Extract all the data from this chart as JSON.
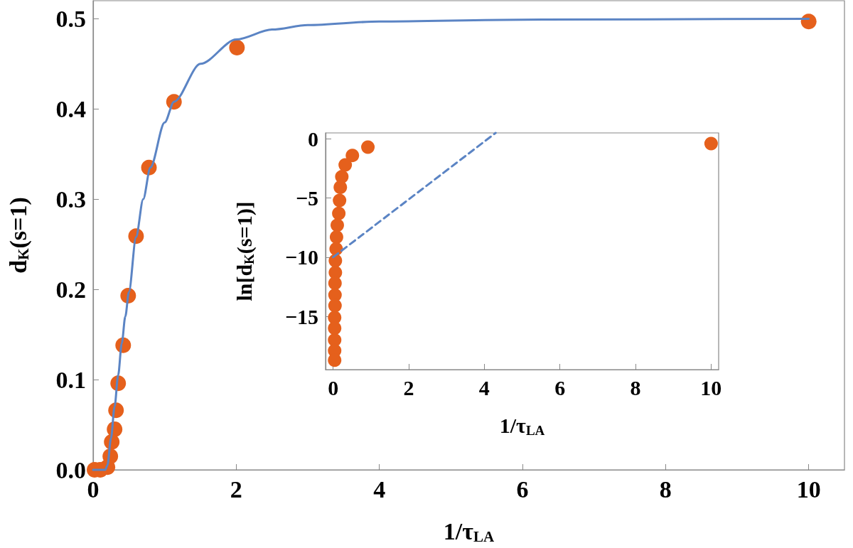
{
  "chart_data": [
    {
      "type": "scatter",
      "xlabel": "1/τ$_{LA}$",
      "ylabel": "d$_{K}$(s=1)",
      "xlim": [
        0,
        10.5
      ],
      "ylim": [
        0,
        0.52
      ],
      "xticks": [
        0,
        2,
        4,
        6,
        8,
        10
      ],
      "yticks": [
        {
          "value": 0,
          "label": "0.0"
        },
        {
          "value": 0.1,
          "label": "0.1"
        },
        {
          "value": 0.2,
          "label": "0.2"
        },
        {
          "value": 0.3,
          "label": "0.3"
        },
        {
          "value": 0.4,
          "label": "0.4"
        },
        {
          "value": 0.5,
          "label": "0.5"
        }
      ],
      "grid": false,
      "marker": "circle",
      "series": [
        {
          "color": "#e5601c",
          "x": [
            10,
            2.01,
            1.13,
            0.78,
            0.6,
            0.49,
            0.42,
            0.35,
            0.32,
            0.3,
            0.26,
            0.24,
            0.2,
            0.1,
            0.02
          ],
          "values": [
            0.497,
            0.468,
            0.408,
            0.335,
            0.259,
            0.193,
            0.138,
            0.096,
            0.066,
            0.045,
            0.031,
            0.015,
            0.003,
            0,
            0
          ]
        },
        {
          "type": "line",
          "color": "#5b84c4",
          "marker": "none",
          "line_style": "solid",
          "x": [
            0,
            0.17,
            0.2,
            0.25,
            0.3,
            0.35,
            0.4,
            0.45,
            0.5,
            0.6,
            0.7,
            0.8,
            1.0,
            1.13,
            1.5,
            2,
            2.5,
            3,
            4,
            6,
            10
          ],
          "values": [
            0,
            0,
            0.005,
            0.035,
            0.07,
            0.105,
            0.14,
            0.17,
            0.197,
            0.258,
            0.3,
            0.335,
            0.385,
            0.408,
            0.45,
            0.477,
            0.488,
            0.493,
            0.497,
            0.499,
            0.5
          ]
        }
      ]
    },
    {
      "type": "scatter",
      "xlabel": "1/τ$_{LA}$",
      "ylabel": "ln[d$_{K}$(s=1)]",
      "xlim": [
        -0.2,
        10.2
      ],
      "ylim": [
        -19.5,
        0.5
      ],
      "xticks": [
        0,
        2,
        4,
        6,
        8,
        10
      ],
      "yticks": [
        0,
        {
          "value": -5,
          "label": "−5"
        },
        {
          "value": -10,
          "label": "−10"
        },
        {
          "value": -15,
          "label": "−15"
        }
      ],
      "grid": false,
      "marker": "circle",
      "series": [
        {
          "color": "#e5601c",
          "x": [
            10,
            0.92,
            0.51,
            0.32,
            0.23,
            0.19,
            0.17,
            0.15,
            0.11,
            0.09,
            0.08,
            0.06,
            0.06,
            0.05,
            0.05,
            0.05,
            0.04,
            0.04,
            0.04,
            0.04,
            0.04
          ],
          "values": [
            -0.4,
            -0.7,
            -1.4,
            -2.2,
            -3.2,
            -4.1,
            -5.2,
            -6.3,
            -7.3,
            -8.3,
            -9.3,
            -10.3,
            -11.3,
            -12.2,
            -13.2,
            -14.1,
            -15.1,
            -16,
            -17,
            -17.9,
            -18.7
          ]
        },
        {
          "type": "line",
          "color": "#5b84c4",
          "marker": "none",
          "line_style": "dashed",
          "x": [
            0,
            4.3
          ],
          "values": [
            -10,
            0.5
          ]
        }
      ]
    }
  ]
}
